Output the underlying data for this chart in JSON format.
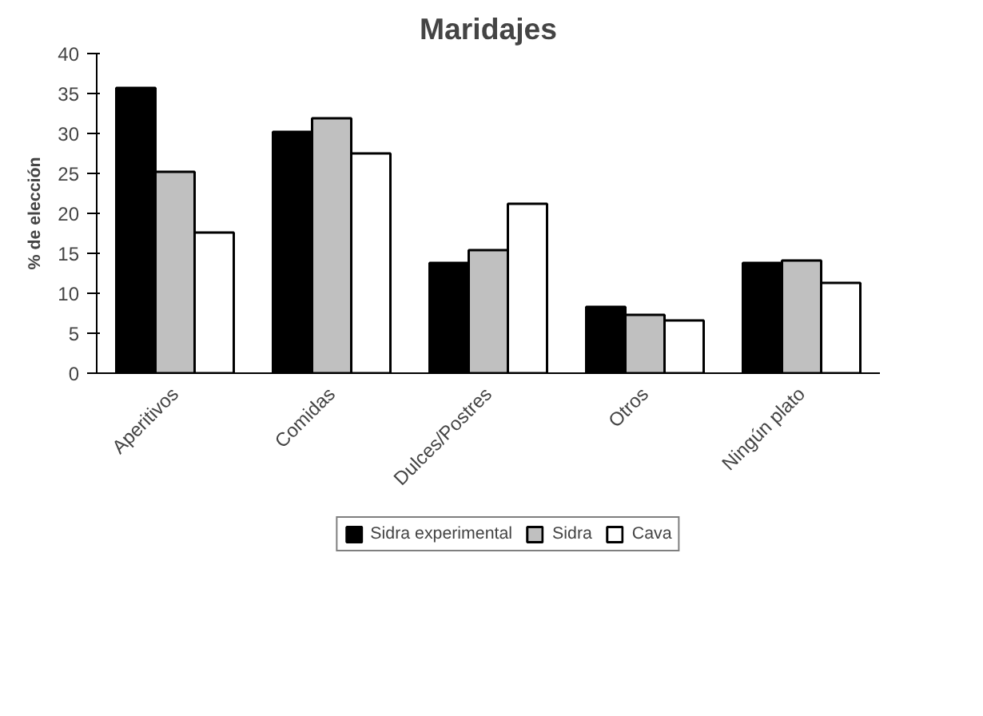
{
  "chart_data": {
    "type": "bar",
    "title": "Maridajes",
    "ylabel": "% de elección",
    "categories": [
      "Aperitivos",
      "Comidas",
      "Dulces/Postres",
      "Otros",
      "Ningún plato"
    ],
    "series": [
      {
        "name": "Sidra experimental",
        "color": "#000000",
        "values": [
          35.7,
          30.2,
          13.8,
          8.3,
          13.8
        ]
      },
      {
        "name": "Sidra",
        "color": "#c0c0c0",
        "values": [
          25.2,
          31.9,
          15.4,
          7.3,
          14.1
        ]
      },
      {
        "name": "Cava",
        "color": "#ffffff",
        "values": [
          17.6,
          27.5,
          21.2,
          6.6,
          11.3
        ]
      }
    ],
    "ylim": [
      0,
      40
    ],
    "yticks": [
      0,
      5,
      10,
      15,
      20,
      25,
      30,
      35,
      40
    ],
    "grid": false,
    "legend": "bottom"
  }
}
